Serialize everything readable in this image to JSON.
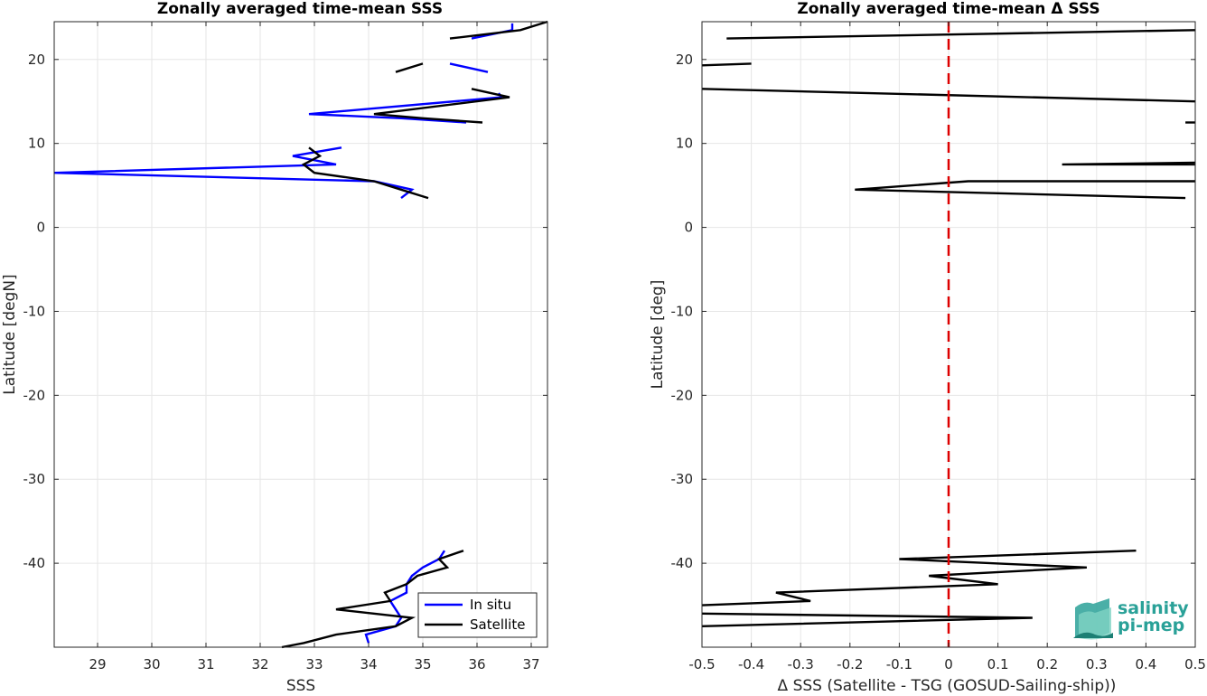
{
  "chart_data": [
    {
      "type": "line",
      "title": "Zonally averaged time-mean SSS",
      "xlabel": "SSS",
      "ylabel": "Latitude [degN]",
      "xlim": [
        28.2,
        37.3
      ],
      "ylim": [
        -50,
        24.5
      ],
      "xticks": [
        29,
        30,
        31,
        32,
        33,
        34,
        35,
        36,
        37
      ],
      "yticks": [
        20,
        10,
        0,
        -10,
        -20,
        -30,
        -40
      ],
      "grid": true,
      "legend_position": "bottom-right",
      "series": [
        {
          "name": "In situ",
          "color": "#0000ff",
          "segments": [
            [
              [
                36.65,
                24.3
              ],
              [
                36.65,
                23.5
              ],
              [
                35.9,
                22.5
              ]
            ],
            [
              [
                35.5,
                19.5
              ],
              [
                36.2,
                18.5
              ]
            ],
            [
              [
                36.4,
                16.0
              ],
              [
                36.45,
                15.5
              ],
              [
                32.9,
                13.5
              ],
              [
                34.6,
                13.0
              ],
              [
                35.8,
                12.5
              ]
            ],
            [
              [
                33.5,
                9.5
              ],
              [
                32.6,
                8.5
              ],
              [
                33.4,
                7.5
              ],
              [
                28.2,
                6.5
              ],
              [
                34.1,
                5.5
              ],
              [
                34.8,
                4.5
              ],
              [
                34.6,
                3.5
              ]
            ],
            [
              [
                35.4,
                -38.5
              ],
              [
                35.3,
                -39.5
              ],
              [
                35.0,
                -40.5
              ],
              [
                34.8,
                -41.5
              ],
              [
                34.7,
                -42.5
              ],
              [
                34.7,
                -43.5
              ],
              [
                34.4,
                -44.5
              ],
              [
                34.5,
                -45.5
              ],
              [
                34.6,
                -46.5
              ],
              [
                34.5,
                -47.5
              ],
              [
                33.95,
                -48.5
              ],
              [
                34.0,
                -49.5
              ]
            ]
          ]
        },
        {
          "name": "Satellite",
          "color": "#000000",
          "segments": [
            [
              [
                37.3,
                24.5
              ],
              [
                36.8,
                23.5
              ],
              [
                35.5,
                22.5
              ]
            ],
            [
              [
                34.5,
                18.5
              ],
              [
                35.0,
                19.5
              ]
            ],
            [
              [
                35.9,
                16.5
              ],
              [
                36.6,
                15.5
              ],
              [
                34.1,
                13.5
              ],
              [
                35.0,
                13.0
              ],
              [
                36.1,
                12.5
              ]
            ],
            [
              [
                32.9,
                9.5
              ],
              [
                33.1,
                8.5
              ],
              [
                32.8,
                7.5
              ],
              [
                33.0,
                6.5
              ],
              [
                34.1,
                5.5
              ],
              [
                34.6,
                4.5
              ],
              [
                35.1,
                3.5
              ]
            ],
            [
              [
                35.75,
                -38.5
              ],
              [
                35.3,
                -39.5
              ],
              [
                35.45,
                -40.5
              ],
              [
                34.9,
                -41.5
              ],
              [
                34.7,
                -42.5
              ],
              [
                34.3,
                -43.5
              ],
              [
                34.4,
                -44.5
              ],
              [
                33.4,
                -45.5
              ],
              [
                34.8,
                -46.5
              ],
              [
                34.5,
                -47.5
              ],
              [
                33.4,
                -48.5
              ],
              [
                32.8,
                -49.5
              ],
              [
                32.4,
                -50.0
              ]
            ]
          ]
        }
      ]
    },
    {
      "type": "line",
      "title": "Zonally averaged time-mean Δ SSS",
      "xlabel": "Δ SSS (Satellite - TSG (GOSUD-Sailing-ship))",
      "ylabel": "Latitude [deg]",
      "xlim": [
        -0.5,
        0.5
      ],
      "ylim": [
        -50,
        24.5
      ],
      "xticks": [
        -0.5,
        -0.4,
        -0.3,
        -0.2,
        -0.1,
        0,
        0.1,
        0.2,
        0.3,
        0.4,
        0.5
      ],
      "xtick_labels": [
        "-0.5",
        "-0.4",
        "-0.3",
        "-0.2",
        "-0.1",
        "0",
        "0.1",
        "0.2",
        "0.3",
        "0.4",
        "0.5"
      ],
      "yticks": [
        20,
        10,
        0,
        -10,
        -20,
        -30,
        -40
      ],
      "grid": true,
      "zero_line_color": "#dd0000",
      "series": [
        {
          "color": "#000000",
          "segments": [
            [
              [
                0.5,
                23.5
              ],
              [
                -0.45,
                22.5
              ]
            ],
            [
              [
                -0.5,
                19.3
              ],
              [
                -0.4,
                19.5
              ]
            ],
            [
              [
                -0.5,
                16.5
              ],
              [
                0.5,
                15.0
              ]
            ],
            [
              [
                0.48,
                12.5
              ],
              [
                0.5,
                12.5
              ]
            ],
            [
              [
                0.5,
                7.7
              ],
              [
                0.23,
                7.5
              ],
              [
                0.5,
                7.5
              ]
            ],
            [
              [
                0.5,
                5.5
              ],
              [
                0.04,
                5.5
              ],
              [
                -0.19,
                4.5
              ],
              [
                0.48,
                3.5
              ]
            ],
            [
              [
                0.38,
                -38.5
              ],
              [
                -0.1,
                -39.5
              ],
              [
                0.28,
                -40.5
              ],
              [
                -0.04,
                -41.5
              ],
              [
                0.1,
                -42.5
              ],
              [
                -0.35,
                -43.5
              ],
              [
                -0.28,
                -44.5
              ],
              [
                -0.5,
                -45.0
              ]
            ],
            [
              [
                -0.5,
                -46.0
              ],
              [
                0.17,
                -46.5
              ],
              [
                -0.5,
                -47.5
              ]
            ]
          ]
        }
      ]
    }
  ],
  "logo": {
    "line1": "salinity",
    "line2": "pi-mep"
  }
}
